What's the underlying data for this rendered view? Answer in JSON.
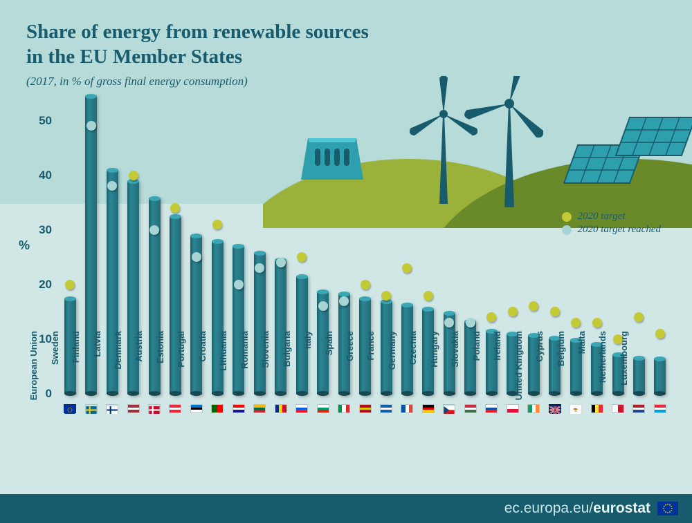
{
  "title_line1": "Share of energy from renewable sources",
  "title_line2": "in the EU Member States",
  "subtitle": "(2017, in % of gross final energy consumption)",
  "colors": {
    "upper_bg": "#b7dbd9",
    "lower_bg": "#d1e7e6",
    "title": "#175b6d",
    "subtitle": "#175b6d",
    "bar_fill": "#246b78",
    "bar_cap": "#3ba7b4",
    "bar_base": "#174851",
    "target_not_reached": "#c4c936",
    "target_reached": "#a8d5d3",
    "axis_text": "#175b6d",
    "hill_dark": "#6a8a2a",
    "hill_light": "#9bb23a",
    "turbine": "#175b6d",
    "dam": "#2d9fad",
    "footer_bg": "#175b6d"
  },
  "legend": {
    "target": "2020 target",
    "reached": "2020 target reached"
  },
  "y_axis": {
    "label": "%",
    "min": 0,
    "max": 55,
    "ticks": [
      0,
      10,
      20,
      30,
      40,
      50
    ]
  },
  "data": [
    {
      "name": "European Union",
      "value": 17.5,
      "target": 20,
      "reached": false,
      "flag": "eu"
    },
    {
      "name": "Sweden",
      "value": 54.5,
      "target": 49,
      "reached": true,
      "flag": "se"
    },
    {
      "name": "Finland",
      "value": 41,
      "target": 38,
      "reached": true,
      "flag": "fi"
    },
    {
      "name": "Latvia",
      "value": 39,
      "target": 40,
      "reached": false,
      "flag": "lv"
    },
    {
      "name": "Denmark",
      "value": 35.8,
      "target": 30,
      "reached": true,
      "flag": "dk"
    },
    {
      "name": "Austria",
      "value": 32.5,
      "target": 34,
      "reached": false,
      "flag": "at"
    },
    {
      "name": "Estonia",
      "value": 29,
      "target": 25,
      "reached": true,
      "flag": "ee"
    },
    {
      "name": "Portugal",
      "value": 28,
      "target": 31,
      "reached": false,
      "flag": "pt"
    },
    {
      "name": "Croatia",
      "value": 27,
      "target": 20,
      "reached": true,
      "flag": "hr"
    },
    {
      "name": "Lithuania",
      "value": 25.8,
      "target": 23,
      "reached": true,
      "flag": "lt"
    },
    {
      "name": "Romania",
      "value": 24.5,
      "target": 24,
      "reached": true,
      "flag": "ro"
    },
    {
      "name": "Slovenia",
      "value": 21.5,
      "target": 25,
      "reached": false,
      "flag": "si"
    },
    {
      "name": "Bulgaria",
      "value": 18.7,
      "target": 16,
      "reached": true,
      "flag": "bg"
    },
    {
      "name": "Italy",
      "value": 18.3,
      "target": 17,
      "reached": true,
      "flag": "it"
    },
    {
      "name": "Spain",
      "value": 17.5,
      "target": 20,
      "reached": false,
      "flag": "es"
    },
    {
      "name": "Greece",
      "value": 17,
      "target": 18,
      "reached": false,
      "flag": "gr"
    },
    {
      "name": "France",
      "value": 16.3,
      "target": 23,
      "reached": false,
      "flag": "fr"
    },
    {
      "name": "Germany",
      "value": 15.5,
      "target": 18,
      "reached": false,
      "flag": "de"
    },
    {
      "name": "Czechia",
      "value": 14.8,
      "target": 13,
      "reached": true,
      "flag": "cz"
    },
    {
      "name": "Hungary",
      "value": 13.3,
      "target": 13,
      "reached": true,
      "flag": "hu"
    },
    {
      "name": "Slovakia",
      "value": 11.5,
      "target": 14,
      "reached": false,
      "flag": "sk"
    },
    {
      "name": "Poland",
      "value": 11,
      "target": 15,
      "reached": false,
      "flag": "pl"
    },
    {
      "name": "Ireland",
      "value": 10.7,
      "target": 16,
      "reached": false,
      "flag": "ie"
    },
    {
      "name": "United Kingdom",
      "value": 10.2,
      "target": 15,
      "reached": false,
      "flag": "gb"
    },
    {
      "name": "Cyprus",
      "value": 9.9,
      "target": 13,
      "reached": false,
      "flag": "cy"
    },
    {
      "name": "Belgium",
      "value": 9.1,
      "target": 13,
      "reached": false,
      "flag": "be"
    },
    {
      "name": "Malta",
      "value": 7.2,
      "target": 10,
      "reached": false,
      "flag": "mt"
    },
    {
      "name": "Netherlands",
      "value": 6.6,
      "target": 14,
      "reached": false,
      "flag": "nl"
    },
    {
      "name": "Luxembourg",
      "value": 6.4,
      "target": 11,
      "reached": false,
      "flag": "lu"
    }
  ],
  "footer": {
    "light": "ec.europa.eu/",
    "bold": "eurostat"
  },
  "flags": {
    "eu": {
      "type": "solid",
      "c1": "#003399"
    },
    "se": {
      "type": "cross",
      "bg": "#006aa7",
      "fg": "#fecc00"
    },
    "fi": {
      "type": "cross",
      "bg": "#ffffff",
      "fg": "#003580"
    },
    "lv": {
      "type": "h3",
      "c1": "#9e3039",
      "c2": "#ffffff",
      "c3": "#9e3039"
    },
    "dk": {
      "type": "cross",
      "bg": "#c60c30",
      "fg": "#ffffff"
    },
    "at": {
      "type": "h3",
      "c1": "#ed2939",
      "c2": "#ffffff",
      "c3": "#ed2939"
    },
    "ee": {
      "type": "h3",
      "c1": "#0072ce",
      "c2": "#000000",
      "c3": "#ffffff"
    },
    "pt": {
      "type": "v2",
      "c1": "#006600",
      "c2": "#ff0000"
    },
    "hr": {
      "type": "h3",
      "c1": "#ff0000",
      "c2": "#ffffff",
      "c3": "#171796"
    },
    "lt": {
      "type": "h3",
      "c1": "#fdb913",
      "c2": "#006a44",
      "c3": "#c1272d"
    },
    "ro": {
      "type": "v3",
      "c1": "#002b7f",
      "c2": "#fcd116",
      "c3": "#ce1126"
    },
    "si": {
      "type": "h3",
      "c1": "#ffffff",
      "c2": "#005ce6",
      "c3": "#ed1c24"
    },
    "bg": {
      "type": "h3",
      "c1": "#ffffff",
      "c2": "#00966e",
      "c3": "#d62612"
    },
    "it": {
      "type": "v3",
      "c1": "#009246",
      "c2": "#ffffff",
      "c3": "#ce2b37"
    },
    "es": {
      "type": "h3",
      "c1": "#aa151b",
      "c2": "#f1bf00",
      "c3": "#aa151b"
    },
    "gr": {
      "type": "h3",
      "c1": "#0d5eaf",
      "c2": "#ffffff",
      "c3": "#0d5eaf"
    },
    "fr": {
      "type": "v3",
      "c1": "#0055a4",
      "c2": "#ffffff",
      "c3": "#ef4135"
    },
    "de": {
      "type": "h3",
      "c1": "#000000",
      "c2": "#dd0000",
      "c3": "#ffce00"
    },
    "cz": {
      "type": "h2",
      "c1": "#ffffff",
      "c2": "#d7141a"
    },
    "hu": {
      "type": "h3",
      "c1": "#cd2a3e",
      "c2": "#ffffff",
      "c3": "#436f4d"
    },
    "sk": {
      "type": "h3",
      "c1": "#ffffff",
      "c2": "#0b4ea2",
      "c3": "#ee1c25"
    },
    "pl": {
      "type": "h2",
      "c1": "#ffffff",
      "c2": "#dc143c"
    },
    "ie": {
      "type": "v3",
      "c1": "#169b62",
      "c2": "#ffffff",
      "c3": "#ff883e"
    },
    "gb": {
      "type": "solid",
      "c1": "#012169"
    },
    "cy": {
      "type": "solid",
      "c1": "#ffffff"
    },
    "be": {
      "type": "v3",
      "c1": "#000000",
      "c2": "#fae042",
      "c3": "#ed2939"
    },
    "mt": {
      "type": "v2",
      "c1": "#ffffff",
      "c2": "#cf142b"
    },
    "nl": {
      "type": "h3",
      "c1": "#ae1c28",
      "c2": "#ffffff",
      "c3": "#21468b"
    },
    "lu": {
      "type": "h3",
      "c1": "#ed2939",
      "c2": "#ffffff",
      "c3": "#00a1de"
    }
  }
}
